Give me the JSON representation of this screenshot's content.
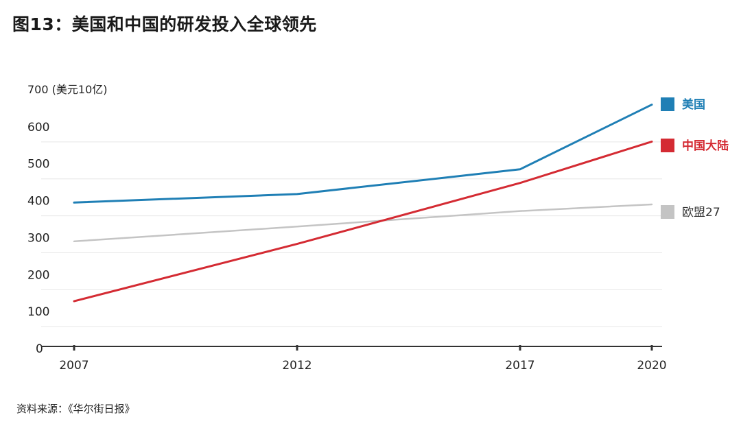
{
  "title": "图13：美国和中国的研发投入全球领先",
  "source": "资料来源：《华尔街日报》",
  "chart_data": {
    "type": "line",
    "title": "图13：美国和中国的研发投入全球领先",
    "ylabel": "(美元10亿)",
    "ylim": [
      0,
      700
    ],
    "yticks": [
      0,
      100,
      200,
      300,
      400,
      500,
      600,
      700
    ],
    "xticks": [
      2007,
      2012,
      2017,
      2020
    ],
    "xlim": [
      2007,
      2020
    ],
    "grid": true,
    "legend_position": "right",
    "series": [
      {
        "name": "美国",
        "color": "#1f7fb5",
        "x": [
          2007,
          2012,
          2017,
          2020
        ],
        "y": [
          395,
          418,
          485,
          660
        ]
      },
      {
        "name": "中国大陆",
        "color": "#d42b33",
        "x": [
          2007,
          2012,
          2017,
          2020
        ],
        "y": [
          128,
          283,
          448,
          560
        ]
      },
      {
        "name": "欧盟27",
        "color": "#c4c4c4",
        "x": [
          2007,
          2012,
          2017,
          2020
        ],
        "y": [
          290,
          330,
          372,
          390
        ]
      }
    ]
  }
}
